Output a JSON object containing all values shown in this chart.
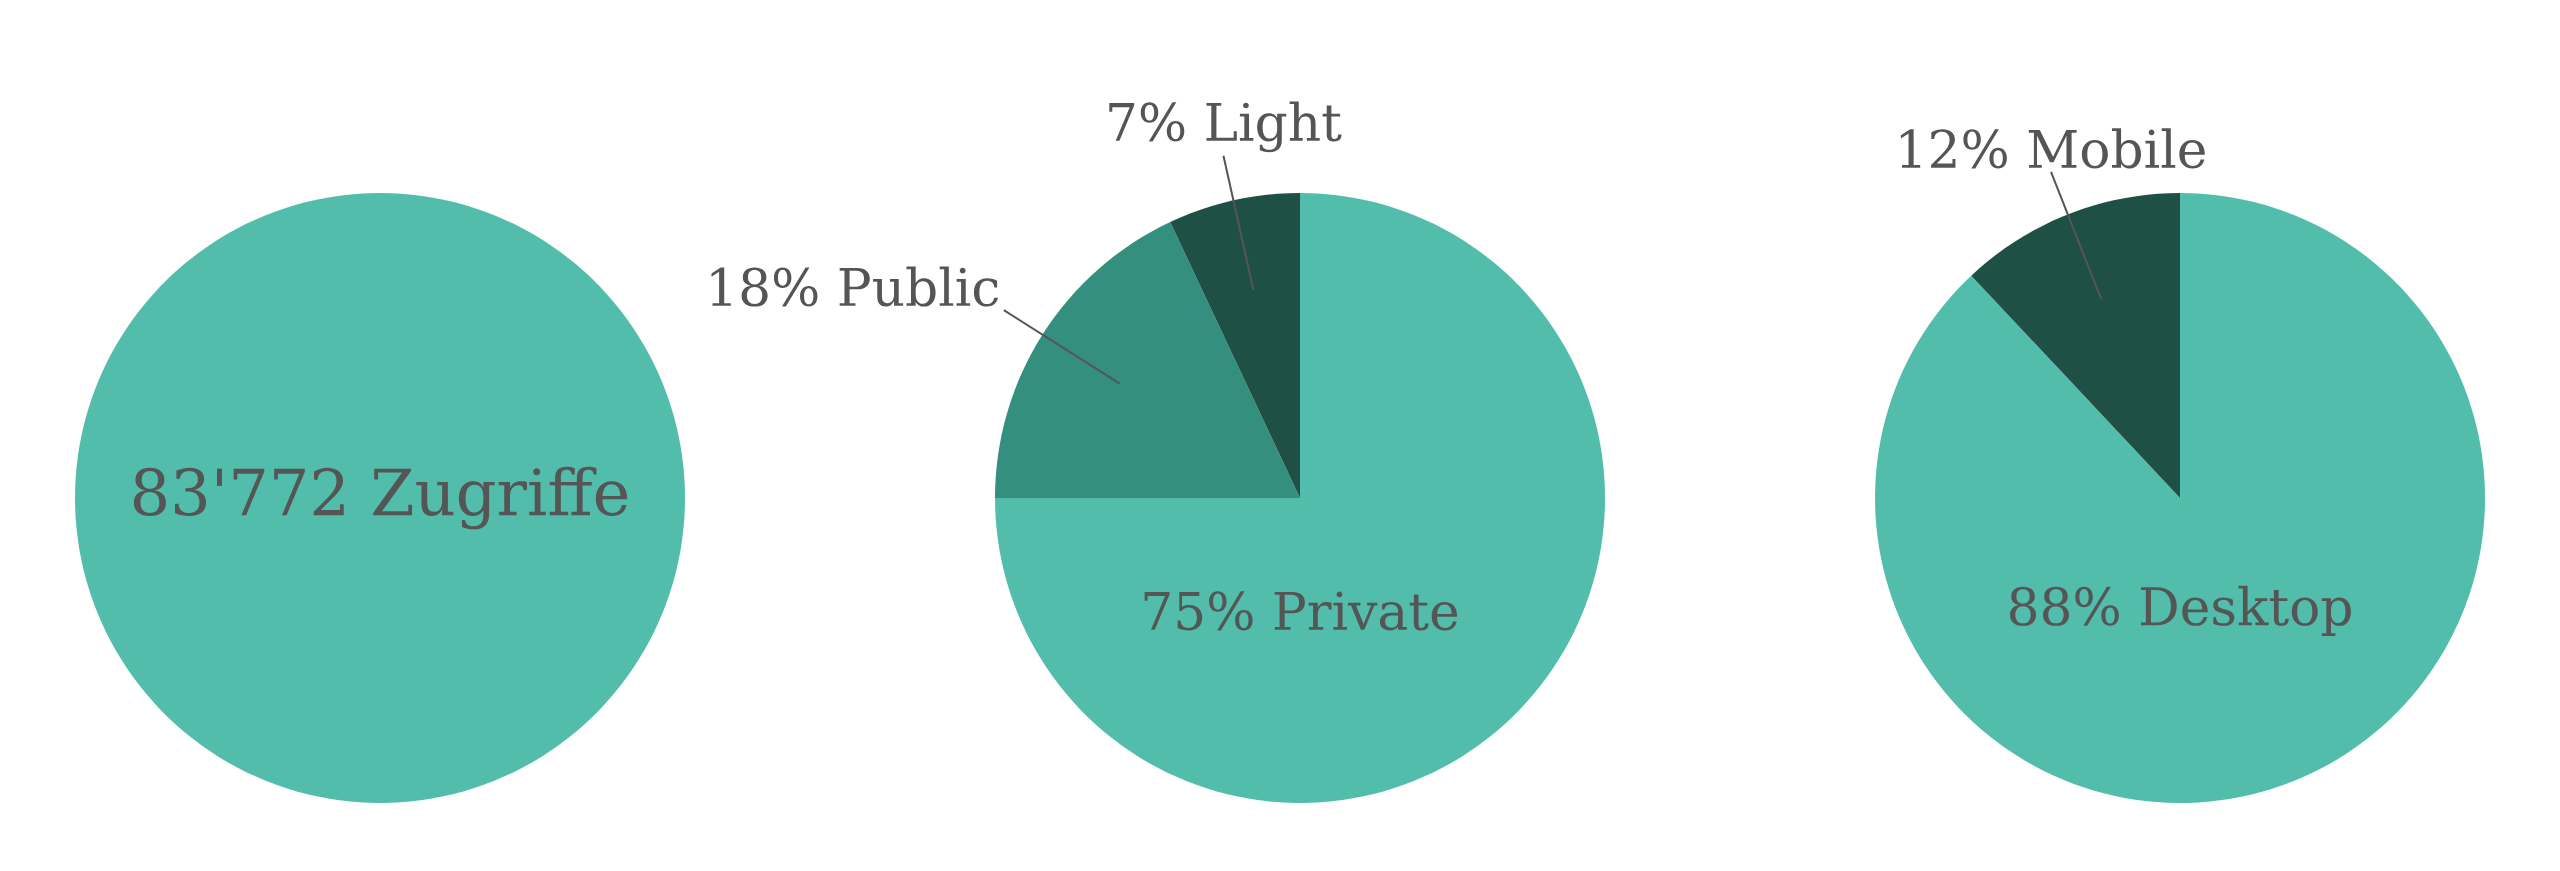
{
  "chart_data": [
    {
      "type": "pie",
      "categories": [
        "Zugriffe"
      ],
      "values": [
        83772
      ],
      "value_labels": [
        "83'772"
      ],
      "colors": [
        "#52bdaa"
      ]
    },
    {
      "type": "pie",
      "categories": [
        "Private",
        "Public",
        "Light"
      ],
      "values": [
        75,
        18,
        7
      ],
      "value_labels": [
        "75%",
        "18%",
        "7%"
      ],
      "colors": [
        "#52bdaa",
        "#348f7f",
        "#1f5046"
      ]
    },
    {
      "type": "pie",
      "categories": [
        "Desktop",
        "Mobile"
      ],
      "values": [
        88,
        12
      ],
      "value_labels": [
        "88%",
        "12%"
      ],
      "colors": [
        "#52bdaa",
        "#1f5046"
      ]
    }
  ]
}
